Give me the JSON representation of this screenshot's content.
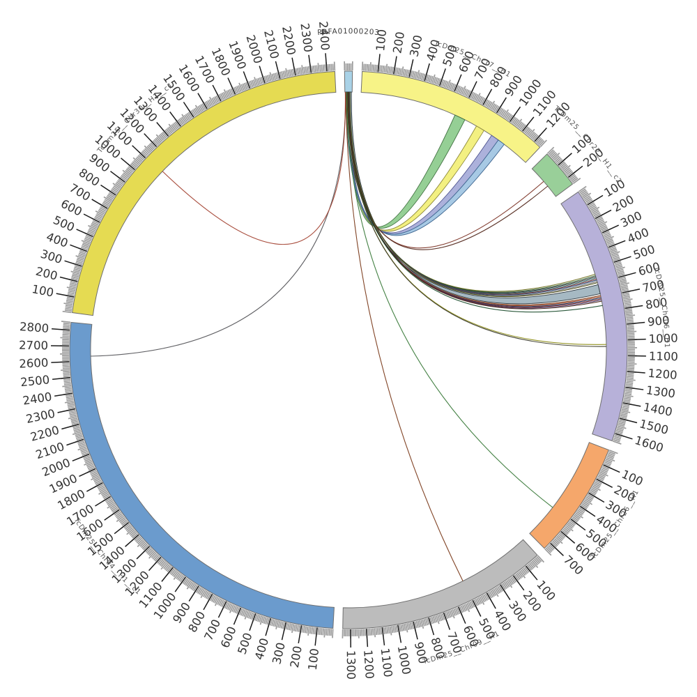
{
  "chart_data": {
    "type": "circos",
    "description": "Circular synteny plot linking contig PRFA01000203 to chromosome assemblies",
    "center": [
      500,
      502
    ],
    "radius": {
      "band_inner": 370,
      "band_outer": 400,
      "minor_tick_inner": 401,
      "minor_tick_outer": 411,
      "major_tick_outer": 427,
      "tick_label": 431,
      "name_label": 454
    },
    "gap_degrees": 2,
    "ticks": {
      "major_every": 100,
      "minor_every": 10
    },
    "style": {
      "background": "#FFFFFF",
      "band_stroke": "#6E6E6E",
      "minor_tick_color": "#9A9A9A",
      "major_tick_color": "#1A1A1A",
      "tick_label_color": "#333333",
      "tick_label_size": 16.5,
      "name_label_color": "#555555",
      "name_label_size": 10,
      "ribbon_stroke_width": 0.9,
      "line_stroke_width": 1.1
    },
    "segments": [
      {
        "name": "PRFA01000203",
        "length": 50,
        "color": "#A9D2E7",
        "name_size": 10.5,
        "name_color": "#3A3A3A"
      },
      {
        "name": "TcDm25__Chr17__H1",
        "length": 1250,
        "color": "#F7F387"
      },
      {
        "name": "TcDm25__Chr22__H1__c2",
        "length": 250,
        "color": "#99CF99"
      },
      {
        "name": "TcDm25__Chr06__H1",
        "length": 1650,
        "color": "#B7B1D9"
      },
      {
        "name": "TcDm25__Chr26__H1",
        "length": 750,
        "color": "#F5A76B"
      },
      {
        "name": "TcDm25__Chr09__H1",
        "length": 1350,
        "color": "#BCBCBC"
      },
      {
        "name": "TcDm25__Chr04__H1__c1",
        "length": 2850,
        "color": "#6B9BCD"
      },
      {
        "name": "TcDm25__Chr30__H1__c1",
        "length": 2450,
        "color": "#E5DB52"
      }
    ],
    "links": [
      {
        "type": "ribbon",
        "source": "PRFA01000203",
        "src": [
          30,
          40
        ],
        "target": "TcDm25__Chr17__H1",
        "tgt": [
          665,
          740
        ],
        "fill": "#92CD92",
        "stroke": "#3F6F3F"
      },
      {
        "type": "ribbon",
        "source": "PRFA01000203",
        "src": [
          22,
          30
        ],
        "target": "TcDm25__Chr17__H1",
        "tgt": [
          830,
          890
        ],
        "fill": "#F3EF7D",
        "stroke": "#8E8A3A"
      },
      {
        "type": "ribbon",
        "source": "PRFA01000203",
        "src": [
          13,
          21
        ],
        "target": "TcDm25__Chr17__H1",
        "tgt": [
          952,
          1008
        ],
        "fill": "#A9AEDA",
        "stroke": "#4F5490"
      },
      {
        "type": "ribbon",
        "source": "PRFA01000203",
        "src": [
          7,
          13
        ],
        "target": "TcDm25__Chr17__H1",
        "tgt": [
          1008,
          1058
        ],
        "fill": "#A4C7E3",
        "stroke": "#3F6690"
      },
      {
        "type": "ribbon",
        "source": "PRFA01000203",
        "src": [
          5,
          45
        ],
        "target": "TcDm25__Chr06__H1",
        "tgt": [
          612,
          676
        ],
        "fill": "#A3B7C1",
        "stroke": "#2F3A42"
      },
      {
        "type": "line",
        "source": "PRFA01000203",
        "src": [
          24,
          24
        ],
        "target": "TcDm25__Chr22__H1__c2",
        "tgt": [
          118,
          118
        ],
        "stroke": "#7B3224"
      },
      {
        "type": "line",
        "source": "PRFA01000203",
        "src": [
          26,
          26
        ],
        "target": "TcDm25__Chr22__H1__c2",
        "tgt": [
          160,
          160
        ],
        "stroke": "#53281C"
      },
      {
        "type": "line",
        "source": "PRFA01000203",
        "src": [
          28,
          28
        ],
        "target": "TcDm25__Chr06__H1",
        "tgt": [
          538,
          538
        ],
        "stroke": "#6E6E1C"
      },
      {
        "type": "line",
        "source": "PRFA01000203",
        "src": [
          29,
          29
        ],
        "target": "TcDm25__Chr06__H1",
        "tgt": [
          548,
          548
        ],
        "stroke": "#2E5E2E"
      },
      {
        "type": "line",
        "source": "PRFA01000203",
        "src": [
          30,
          30
        ],
        "target": "TcDm25__Chr06__H1",
        "tgt": [
          556,
          556
        ],
        "stroke": "#26262A"
      },
      {
        "type": "line",
        "source": "PRFA01000203",
        "src": [
          31,
          31
        ],
        "target": "TcDm25__Chr06__H1",
        "tgt": [
          564,
          564
        ],
        "stroke": "#2F6B6B"
      },
      {
        "type": "line",
        "source": "PRFA01000203",
        "src": [
          32,
          32
        ],
        "target": "TcDm25__Chr06__H1",
        "tgt": [
          572,
          572
        ],
        "stroke": "#6E2424"
      },
      {
        "type": "line",
        "source": "PRFA01000203",
        "src": [
          33,
          33
        ],
        "target": "TcDm25__Chr06__H1",
        "tgt": [
          580,
          580
        ],
        "stroke": "#24406E"
      },
      {
        "type": "line",
        "source": "PRFA01000203",
        "src": [
          34,
          34
        ],
        "target": "TcDm25__Chr06__H1",
        "tgt": [
          590,
          590
        ],
        "stroke": "#5E5E5E"
      },
      {
        "type": "line",
        "source": "PRFA01000203",
        "src": [
          35,
          35
        ],
        "target": "TcDm25__Chr06__H1",
        "tgt": [
          598,
          598
        ],
        "stroke": "#4C4C12"
      },
      {
        "type": "line",
        "source": "PRFA01000203",
        "src": [
          18,
          18
        ],
        "target": "TcDm25__Chr06__H1",
        "tgt": [
          688,
          688
        ],
        "stroke": "#7B3F1E"
      },
      {
        "type": "line",
        "source": "PRFA01000203",
        "src": [
          19,
          19
        ],
        "target": "TcDm25__Chr06__H1",
        "tgt": [
          696,
          696
        ],
        "stroke": "#A84A28"
      },
      {
        "type": "line",
        "source": "PRFA01000203",
        "src": [
          20,
          20
        ],
        "target": "TcDm25__Chr06__H1",
        "tgt": [
          704,
          704
        ],
        "stroke": "#1F3A66"
      },
      {
        "type": "line",
        "source": "PRFA01000203",
        "src": [
          21,
          21
        ],
        "target": "TcDm25__Chr06__H1",
        "tgt": [
          712,
          712
        ],
        "stroke": "#6E1E1E"
      },
      {
        "type": "line",
        "source": "PRFA01000203",
        "src": [
          22,
          22
        ],
        "target": "TcDm25__Chr06__H1",
        "tgt": [
          720,
          720
        ],
        "stroke": "#463569"
      },
      {
        "type": "line",
        "source": "PRFA01000203",
        "src": [
          23,
          23
        ],
        "target": "TcDm25__Chr06__H1",
        "tgt": [
          728,
          728
        ],
        "stroke": "#44200F"
      },
      {
        "type": "line",
        "source": "PRFA01000203",
        "src": [
          17,
          17
        ],
        "target": "TcDm25__Chr06__H1",
        "tgt": [
          758,
          758
        ],
        "stroke": "#1E4E2E"
      },
      {
        "type": "line",
        "source": "PRFA01000203",
        "src": [
          16,
          16
        ],
        "target": "TcDm25__Chr06__H1",
        "tgt": [
          1026,
          1026
        ],
        "stroke": "#8B8B14"
      },
      {
        "type": "line",
        "source": "PRFA01000203",
        "src": [
          15,
          15
        ],
        "target": "TcDm25__Chr06__H1",
        "tgt": [
          1040,
          1040
        ],
        "stroke": "#3A3A2A"
      },
      {
        "type": "line",
        "source": "PRFA01000203",
        "src": [
          10,
          10
        ],
        "target": "TcDm25__Chr26__H1",
        "tgt": [
          512,
          512
        ],
        "stroke": "#3A7A3A"
      },
      {
        "type": "line",
        "source": "PRFA01000203",
        "src": [
          6,
          6
        ],
        "target": "TcDm25__Chr09__H1",
        "tgt": [
          502,
          502
        ],
        "stroke": "#7A3A1A"
      },
      {
        "type": "line",
        "source": "PRFA01000203",
        "src": [
          4,
          4
        ],
        "target": "TcDm25__Chr04__H1__c1",
        "tgt": [
          2632,
          2632
        ],
        "stroke": "#55555A"
      },
      {
        "type": "line",
        "source": "PRFA01000203",
        "src": [
          3,
          3
        ],
        "target": "TcDm25__Chr30__H1__c1",
        "tgt": [
          1114,
          1114
        ],
        "stroke": "#A34232"
      }
    ]
  }
}
